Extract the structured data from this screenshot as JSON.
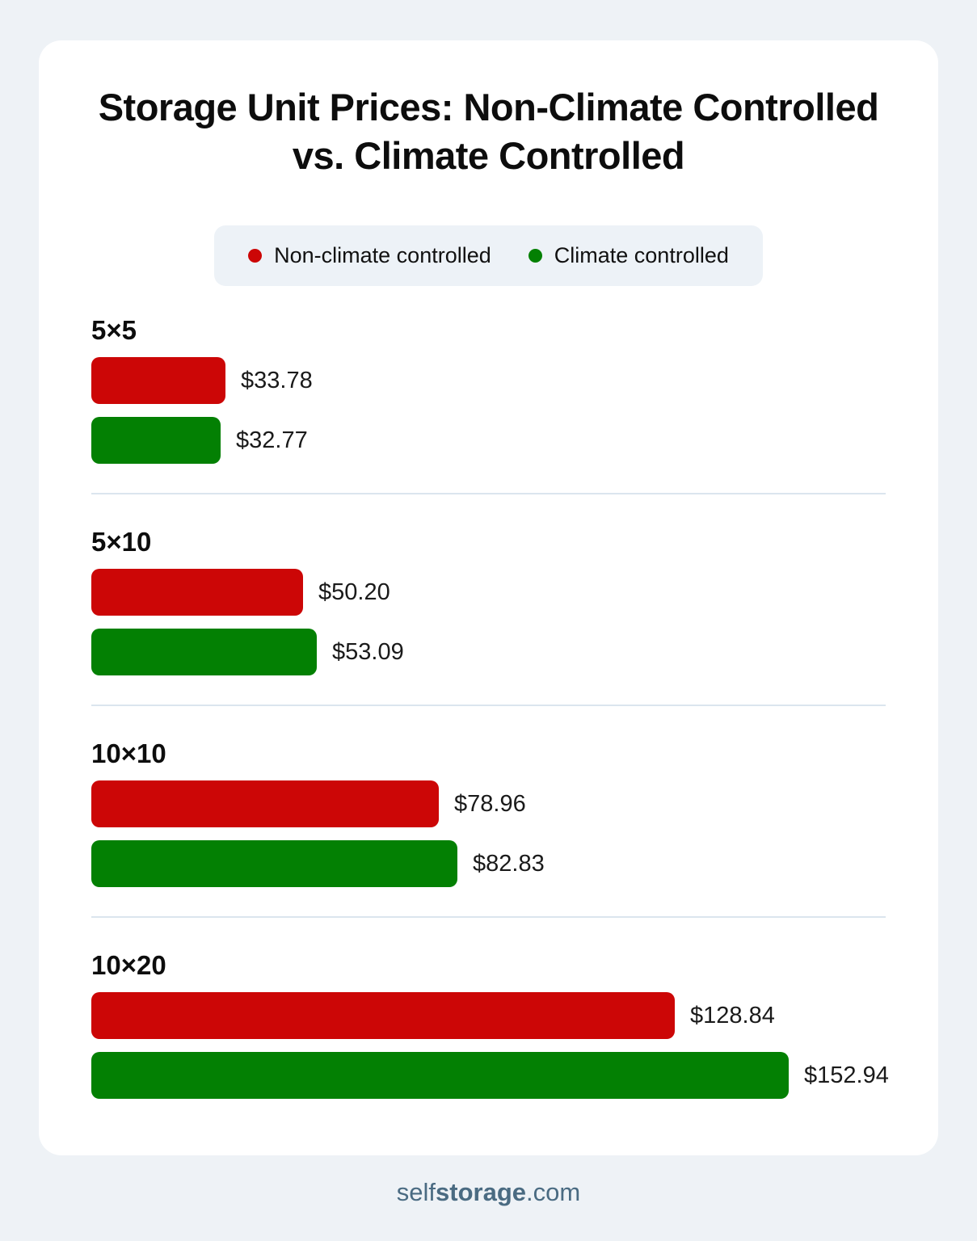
{
  "page": {
    "background_color": "#eef2f6",
    "card_color": "#ffffff"
  },
  "title": "Storage Unit Prices: Non-Climate Controlled vs. Climate Controlled",
  "legend": [
    {
      "label": "Non-climate controlled",
      "color": "#cc0606"
    },
    {
      "label": "Climate controlled",
      "color": "#038003"
    }
  ],
  "chart_data": {
    "type": "bar",
    "orientation": "horizontal",
    "title": "Storage Unit Prices: Non-Climate Controlled vs. Climate Controlled",
    "categories": [
      "5×5",
      "5×10",
      "10×10",
      "10×20"
    ],
    "series": [
      {
        "name": "Non-climate controlled",
        "color": "#cc0606",
        "values": [
          33.78,
          50.2,
          78.96,
          128.84
        ]
      },
      {
        "name": "Climate controlled",
        "color": "#038003",
        "values": [
          32.77,
          53.09,
          82.83,
          152.94
        ]
      }
    ],
    "value_format": "USD",
    "legend_position": "top-center",
    "grid": false,
    "groups": [
      {
        "label": "5×5",
        "bars": [
          {
            "series": "Non-climate controlled",
            "color": "#cc0606",
            "value": 33.78,
            "display": "$33.78"
          },
          {
            "series": "Climate controlled",
            "color": "#038003",
            "value": 32.77,
            "display": "$32.77"
          }
        ]
      },
      {
        "label": "5×10",
        "bars": [
          {
            "series": "Non-climate controlled",
            "color": "#cc0606",
            "value": 50.2,
            "display": "$50.20"
          },
          {
            "series": "Climate controlled",
            "color": "#038003",
            "value": 53.09,
            "display": "$53.09"
          }
        ]
      },
      {
        "label": "10×10",
        "bars": [
          {
            "series": "Non-climate controlled",
            "color": "#cc0606",
            "value": 78.96,
            "display": "$78.96"
          },
          {
            "series": "Climate controlled",
            "color": "#038003",
            "value": 82.83,
            "display": "$82.83"
          }
        ]
      },
      {
        "label": "10×20",
        "bars": [
          {
            "series": "Non-climate controlled",
            "color": "#cc0606",
            "value": 128.84,
            "display": "$128.84"
          },
          {
            "series": "Climate controlled",
            "color": "#038003",
            "value": 152.94,
            "display": "$152.94"
          }
        ]
      }
    ]
  },
  "footer": {
    "brand_prefix": "self",
    "brand_bold": "storage",
    "brand_suffix": ".com",
    "color": "#4a6b82"
  }
}
